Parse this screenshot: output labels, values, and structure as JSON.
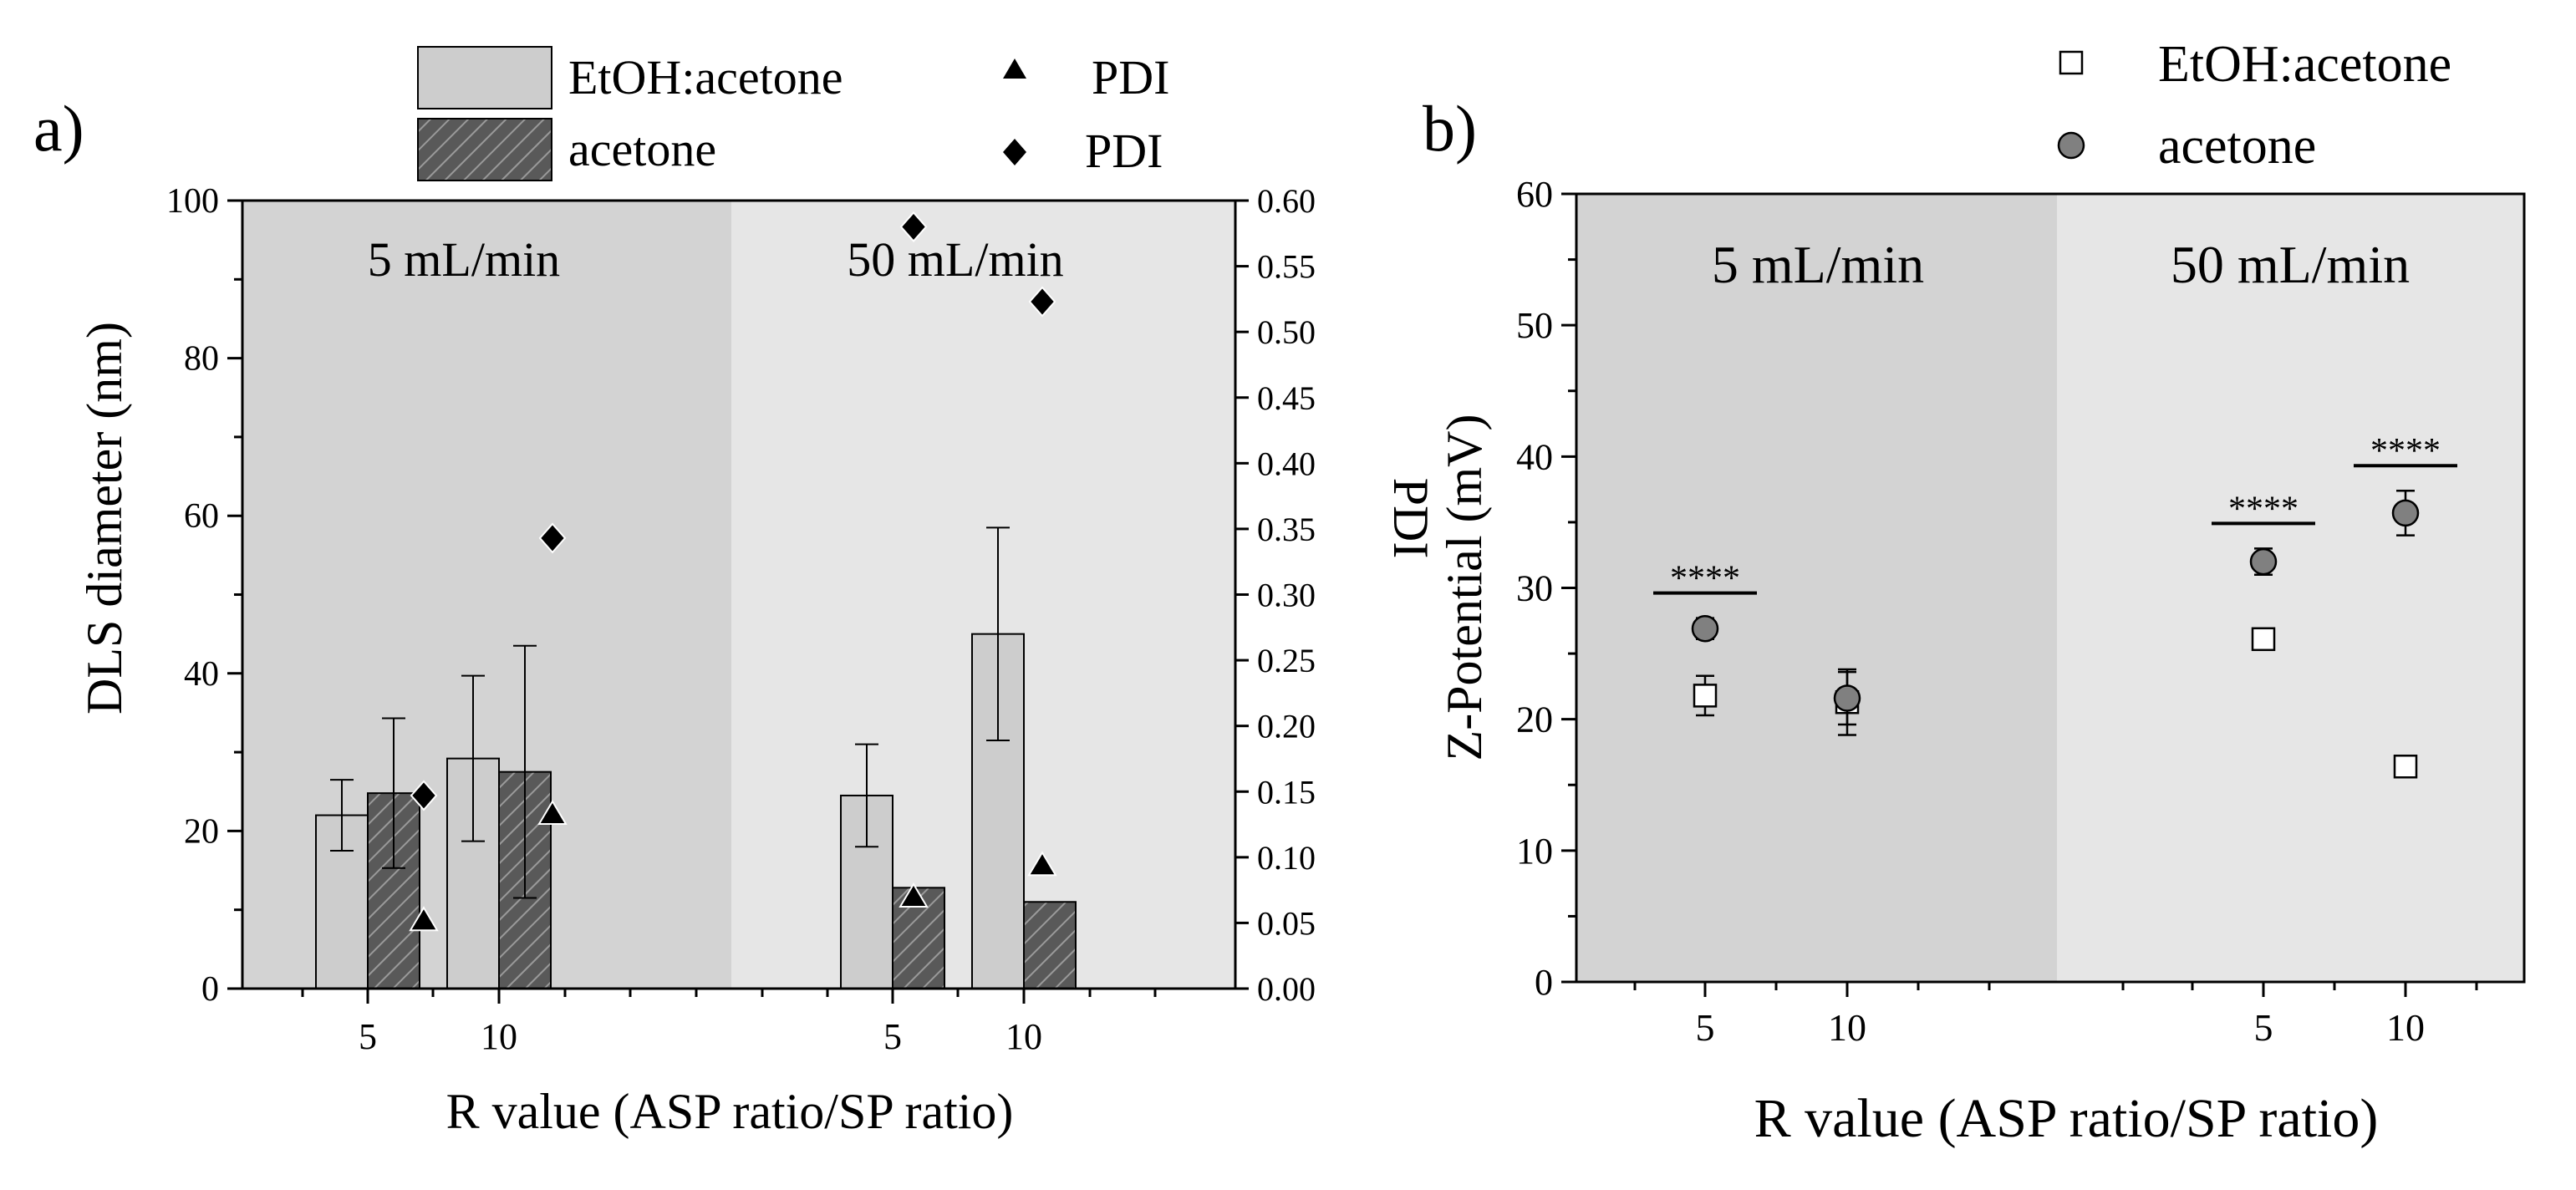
{
  "chart_data": [
    {
      "panel_label": "a)",
      "type": "bar",
      "xlabel": "R value (ASP ratio/SP ratio)",
      "ylabel": "DLS diameter (nm)",
      "y2label": "PDI",
      "ylim": [
        0,
        100
      ],
      "y2lim": [
        0,
        0.6
      ],
      "yticks": [
        "0",
        "20",
        "40",
        "60",
        "80",
        "100"
      ],
      "y2ticks": [
        "0.00",
        "0.05",
        "0.10",
        "0.15",
        "0.20",
        "0.25",
        "0.30",
        "0.35",
        "0.40",
        "0.45",
        "0.50",
        "0.55",
        "0.60"
      ],
      "regions": [
        {
          "label": "5 mL/min",
          "color": "#d3d3d3"
        },
        {
          "label": "50 mL/min",
          "color": "#e6e6e6"
        }
      ],
      "groups": [
        {
          "region": 0,
          "label": "5"
        },
        {
          "region": 0,
          "label": "10"
        },
        {
          "region": 1,
          "label": "5"
        },
        {
          "region": 1,
          "label": "10"
        }
      ],
      "legend": {
        "entries": [
          {
            "label": "EtOH:acetone",
            "marker": "bar-plain"
          },
          {
            "label": "acetone",
            "marker": "bar-hatched"
          },
          {
            "label": "PDI",
            "marker": "triangle"
          },
          {
            "label": "PDI",
            "marker": "diamond"
          }
        ]
      },
      "series": [
        {
          "kind": "bar",
          "style": "plain",
          "fill": "#cdcdcd",
          "values": [
            22,
            29.2,
            24.5,
            45
          ],
          "err": [
            4.5,
            10.5,
            6.5,
            13.5
          ]
        },
        {
          "kind": "bar",
          "style": "hatched",
          "fill": "#595959",
          "values": [
            24.8,
            27.5,
            12.8,
            11
          ],
          "err": [
            9.5,
            16,
            0,
            0
          ]
        },
        {
          "kind": "scatter",
          "axis": "y2",
          "marker": "triangle",
          "values": [
            0.052,
            0.133,
            0.07,
            0.094
          ]
        },
        {
          "kind": "scatter",
          "axis": "y2",
          "marker": "diamond",
          "values": [
            0.147,
            0.343,
            0.58,
            0.523
          ]
        }
      ]
    },
    {
      "panel_label": "b)",
      "type": "scatter",
      "xlabel": "R value (ASP ratio/SP ratio)",
      "ylabel": "Z-Potential (mV)",
      "ylim": [
        0,
        60
      ],
      "yticks": [
        "0",
        "10",
        "20",
        "30",
        "40",
        "50",
        "60"
      ],
      "regions": [
        {
          "label": "5 mL/min",
          "color": "#d3d3d3"
        },
        {
          "label": "50 mL/min",
          "color": "#e6e6e6"
        }
      ],
      "groups": [
        {
          "region": 0,
          "label": "5"
        },
        {
          "region": 0,
          "label": "10"
        },
        {
          "region": 1,
          "label": "5"
        },
        {
          "region": 1,
          "label": "10"
        }
      ],
      "legend": {
        "entries": [
          {
            "label": "EtOH:acetone",
            "marker": "square-open"
          },
          {
            "label": "acetone",
            "marker": "circle-grey"
          }
        ]
      },
      "series": [
        {
          "marker": "square-open",
          "values": [
            21.8,
            21.3,
            26.1,
            16.4
          ],
          "err": [
            1.5,
            2.5,
            0.8,
            0.8
          ]
        },
        {
          "marker": "circle-grey",
          "values": [
            26.9,
            21.6,
            32.0,
            35.7
          ],
          "err": [
            0.8,
            2.0,
            1.0,
            1.7
          ]
        }
      ],
      "annotations": [
        {
          "group": 0,
          "text": "****"
        },
        {
          "group": 2,
          "text": "****"
        },
        {
          "group": 3,
          "text": "****"
        }
      ]
    }
  ]
}
